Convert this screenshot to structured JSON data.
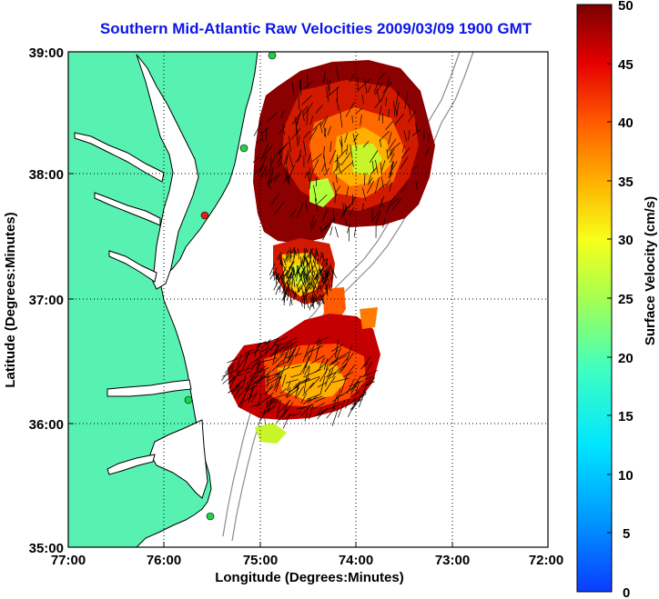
{
  "title": "Southern Mid-Atlantic Raw Velocities 2009/03/09 1900 GMT",
  "x_axis": {
    "label": "Longitude (Degrees:Minutes)",
    "ticks": [
      "77:00",
      "76:00",
      "75:00",
      "74:00",
      "73:00",
      "72:00"
    ]
  },
  "y_axis": {
    "label": "Latitude (Degrees:Minutes)",
    "ticks": [
      "39:00",
      "38:00",
      "37:00",
      "36:00",
      "35:00"
    ]
  },
  "colorbar": {
    "label": "Surface Velocity (cm/s)",
    "ticks": [
      "50",
      "45",
      "40",
      "35",
      "30",
      "25",
      "20",
      "15",
      "10",
      "5",
      "0"
    ],
    "range": [
      0,
      50
    ]
  },
  "colors": {
    "land": "#57f2b2",
    "coastline": "#000000",
    "bathymetry": "#8c8c8c",
    "title": "#0b16e6",
    "station_green": "#1fd14a",
    "station_red": "#e0201c"
  }
}
